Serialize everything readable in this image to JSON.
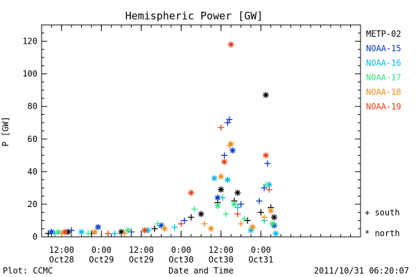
{
  "chart_data": {
    "type": "scatter",
    "title": "Hemispheric Power [GW]",
    "xlabel": "Date and Time",
    "ylabel": "P [GW]",
    "ylim": [
      0,
      130
    ],
    "yticks": [
      0,
      20,
      40,
      60,
      80,
      100,
      120
    ],
    "xlim_hours": [
      -18,
      78
    ],
    "xticks": [
      {
        "hour": -12,
        "time": "12:00",
        "date": "Oct28"
      },
      {
        "hour": 0,
        "time": "0:00",
        "date": "Oct29"
      },
      {
        "hour": 12,
        "time": "12:00",
        "date": "Oct29"
      },
      {
        "hour": 24,
        "time": "0:00",
        "date": "Oct30"
      },
      {
        "hour": 36,
        "time": "12:00",
        "date": "Oct30"
      },
      {
        "hour": 48,
        "time": "0:00",
        "date": "Oct31"
      }
    ],
    "legend_position": "right",
    "markers": [
      {
        "symbol": "+",
        "label": "+ south"
      },
      {
        "symbol": "*",
        "label": "* north"
      }
    ],
    "series": [
      {
        "name": "METP-02",
        "color": "#000000",
        "points": [
          {
            "x": -16,
            "y": 2,
            "m": "+"
          },
          {
            "x": -10,
            "y": 3,
            "m": "*"
          },
          {
            "x": -3,
            "y": 2,
            "m": "+"
          },
          {
            "x": 6,
            "y": 3,
            "m": "*"
          },
          {
            "x": 16,
            "y": 5,
            "m": "+"
          },
          {
            "x": 27,
            "y": 12,
            "m": "+"
          },
          {
            "x": 30,
            "y": 14,
            "m": "*"
          },
          {
            "x": 35,
            "y": 21,
            "m": "+"
          },
          {
            "x": 36,
            "y": 29,
            "m": "*"
          },
          {
            "x": 40,
            "y": 22,
            "m": "+"
          },
          {
            "x": 41,
            "y": 27,
            "m": "*"
          },
          {
            "x": 44,
            "y": 10,
            "m": "+"
          },
          {
            "x": 48,
            "y": 15,
            "m": "+"
          },
          {
            "x": 49.5,
            "y": 87,
            "m": "*"
          },
          {
            "x": 51,
            "y": 18,
            "m": "+"
          },
          {
            "x": 52,
            "y": 12,
            "m": "*"
          }
        ]
      },
      {
        "name": "NOAA-15",
        "color": "#0033cc",
        "points": [
          {
            "x": -15,
            "y": 3,
            "m": "*"
          },
          {
            "x": -9,
            "y": 4,
            "m": "+"
          },
          {
            "x": -1,
            "y": 6,
            "m": "*"
          },
          {
            "x": 9,
            "y": 3,
            "m": "+"
          },
          {
            "x": 18,
            "y": 7,
            "m": "*"
          },
          {
            "x": 25,
            "y": 10,
            "m": "+"
          },
          {
            "x": 35,
            "y": 24,
            "m": "*"
          },
          {
            "x": 37,
            "y": 50,
            "m": "+"
          },
          {
            "x": 38,
            "y": 70,
            "m": "+"
          },
          {
            "x": 38.5,
            "y": 72,
            "m": "+"
          },
          {
            "x": 39.5,
            "y": 53,
            "m": "*"
          },
          {
            "x": 42,
            "y": 20,
            "m": "+"
          },
          {
            "x": 47.5,
            "y": 22,
            "m": "+"
          },
          {
            "x": 49,
            "y": 30,
            "m": "+"
          },
          {
            "x": 50,
            "y": 45,
            "m": "+"
          },
          {
            "x": 52,
            "y": 7,
            "m": "*"
          }
        ]
      },
      {
        "name": "NOAA-16",
        "color": "#00b8e6",
        "points": [
          {
            "x": -14,
            "y": 2,
            "m": "+"
          },
          {
            "x": -6,
            "y": 3,
            "m": "*"
          },
          {
            "x": 4,
            "y": 2,
            "m": "+"
          },
          {
            "x": 14,
            "y": 4,
            "m": "*"
          },
          {
            "x": 22,
            "y": 6,
            "m": "+"
          },
          {
            "x": 34,
            "y": 36,
            "m": "*"
          },
          {
            "x": 36.5,
            "y": 24,
            "m": "+"
          },
          {
            "x": 38,
            "y": 35,
            "m": "*"
          },
          {
            "x": 41,
            "y": 18,
            "m": "+"
          },
          {
            "x": 45,
            "y": 4,
            "m": "*"
          },
          {
            "x": 49,
            "y": 10,
            "m": "+"
          },
          {
            "x": 50.5,
            "y": 32,
            "m": "*"
          },
          {
            "x": 52.5,
            "y": 2,
            "m": "*"
          }
        ]
      },
      {
        "name": "NOAA-17",
        "color": "#33e680",
        "points": [
          {
            "x": -13,
            "y": 3,
            "m": "*"
          },
          {
            "x": -4,
            "y": 2,
            "m": "+"
          },
          {
            "x": 8,
            "y": 4,
            "m": "*"
          },
          {
            "x": 17,
            "y": 8,
            "m": "+"
          },
          {
            "x": 28,
            "y": 17,
            "m": "+"
          },
          {
            "x": 35,
            "y": 19,
            "m": "*"
          },
          {
            "x": 37.5,
            "y": 14,
            "m": "+"
          },
          {
            "x": 40,
            "y": 20,
            "m": "*"
          },
          {
            "x": 43,
            "y": 11,
            "m": "+"
          },
          {
            "x": 49.5,
            "y": 32,
            "m": "+"
          },
          {
            "x": 51.5,
            "y": 8,
            "m": "*"
          }
        ]
      },
      {
        "name": "NOAA-18",
        "color": "#f08c19",
        "points": [
          {
            "x": -12,
            "y": 2,
            "m": "+"
          },
          {
            "x": -2,
            "y": 3,
            "m": "*"
          },
          {
            "x": 7,
            "y": 2,
            "m": "+"
          },
          {
            "x": 19,
            "y": 5,
            "m": "*"
          },
          {
            "x": 31,
            "y": 8,
            "m": "+"
          },
          {
            "x": 33,
            "y": 5,
            "m": "*"
          },
          {
            "x": 36,
            "y": 37,
            "m": "*"
          },
          {
            "x": 38.5,
            "y": 56,
            "m": "+"
          },
          {
            "x": 39,
            "y": 57,
            "m": "*"
          },
          {
            "x": 42,
            "y": 8,
            "m": "+"
          },
          {
            "x": 45.5,
            "y": 6,
            "m": "*"
          },
          {
            "x": 49,
            "y": 12,
            "m": "+"
          },
          {
            "x": 51,
            "y": 16,
            "m": "*"
          }
        ]
      },
      {
        "name": "NOAA-19",
        "color": "#e63b0f",
        "points": [
          {
            "x": -11,
            "y": 3,
            "m": "*"
          },
          {
            "x": 2,
            "y": 2,
            "m": "+"
          },
          {
            "x": 13,
            "y": 4,
            "m": "*"
          },
          {
            "x": 24,
            "y": 8,
            "m": "+"
          },
          {
            "x": 27,
            "y": 27,
            "m": "*"
          },
          {
            "x": 36,
            "y": 67,
            "m": "+"
          },
          {
            "x": 37,
            "y": 46,
            "m": "*"
          },
          {
            "x": 39,
            "y": 118,
            "m": "*"
          },
          {
            "x": 41,
            "y": 14,
            "m": "+"
          },
          {
            "x": 49.5,
            "y": 50,
            "m": "*"
          },
          {
            "x": 50.5,
            "y": 29,
            "m": "+"
          }
        ]
      }
    ]
  },
  "footer": {
    "source": "Plot: CCMC",
    "timestamp": "2011/10/31 06:20:07"
  }
}
